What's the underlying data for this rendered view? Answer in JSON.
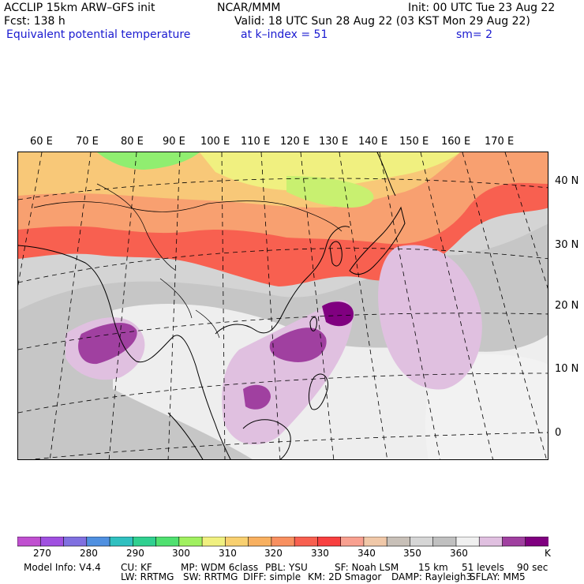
{
  "header": {
    "model": "ACCLIP 15km ARW–GFS init",
    "org": "NCAR/MMM",
    "init": "Init: 00 UTC Tue 23 Aug 22",
    "fcst": "Fcst:  138 h",
    "valid": "Valid: 18 UTC Sun 28 Aug 22 (03 KST Mon 29 Aug 22)",
    "field": "Equivalent potential temperature",
    "level": "at k–index =  51",
    "smoothing": "sm= 2"
  },
  "map": {
    "lon_labels": [
      "60 E",
      "70 E",
      "80 E",
      "90 E",
      "100 E",
      "110 E",
      "120 E",
      "130 E",
      "140 E",
      "150 E",
      "160 E",
      "170 E"
    ],
    "lat_labels": [
      "40 N",
      "30 N",
      "20 N",
      "10 N",
      "0"
    ]
  },
  "colorbar": {
    "colors": [
      "#c050d0",
      "#a050e0",
      "#8070e0",
      "#5090e0",
      "#30c0c0",
      "#30d090",
      "#50e070",
      "#a0f060",
      "#f0f080",
      "#f8d070",
      "#f8b060",
      "#f89060",
      "#f86050",
      "#f84040",
      "#f8a090",
      "#f0c8a8",
      "#c8c0b8",
      "#d6d6d6",
      "#c0c0c0",
      "#f0f0f0",
      "#e0c0e0",
      "#a040a0",
      "#800080"
    ],
    "labels": [
      "270",
      "280",
      "290",
      "300",
      "310",
      "320",
      "330",
      "340",
      "350",
      "360",
      "K"
    ]
  },
  "footer": {
    "line1": [
      "Model Info: V4.4",
      "CU: KF",
      "MP: WDM 6class",
      "PBL: YSU",
      "SF: Noah LSM",
      "15 km",
      "51 levels",
      "90 sec"
    ],
    "line2": [
      "LW: RRTMG",
      "SW: RRTMG",
      "DIFF: simple",
      "KM: 2D Smagor",
      "DAMP: Rayleigh3",
      "SFLAY: MM5"
    ]
  }
}
